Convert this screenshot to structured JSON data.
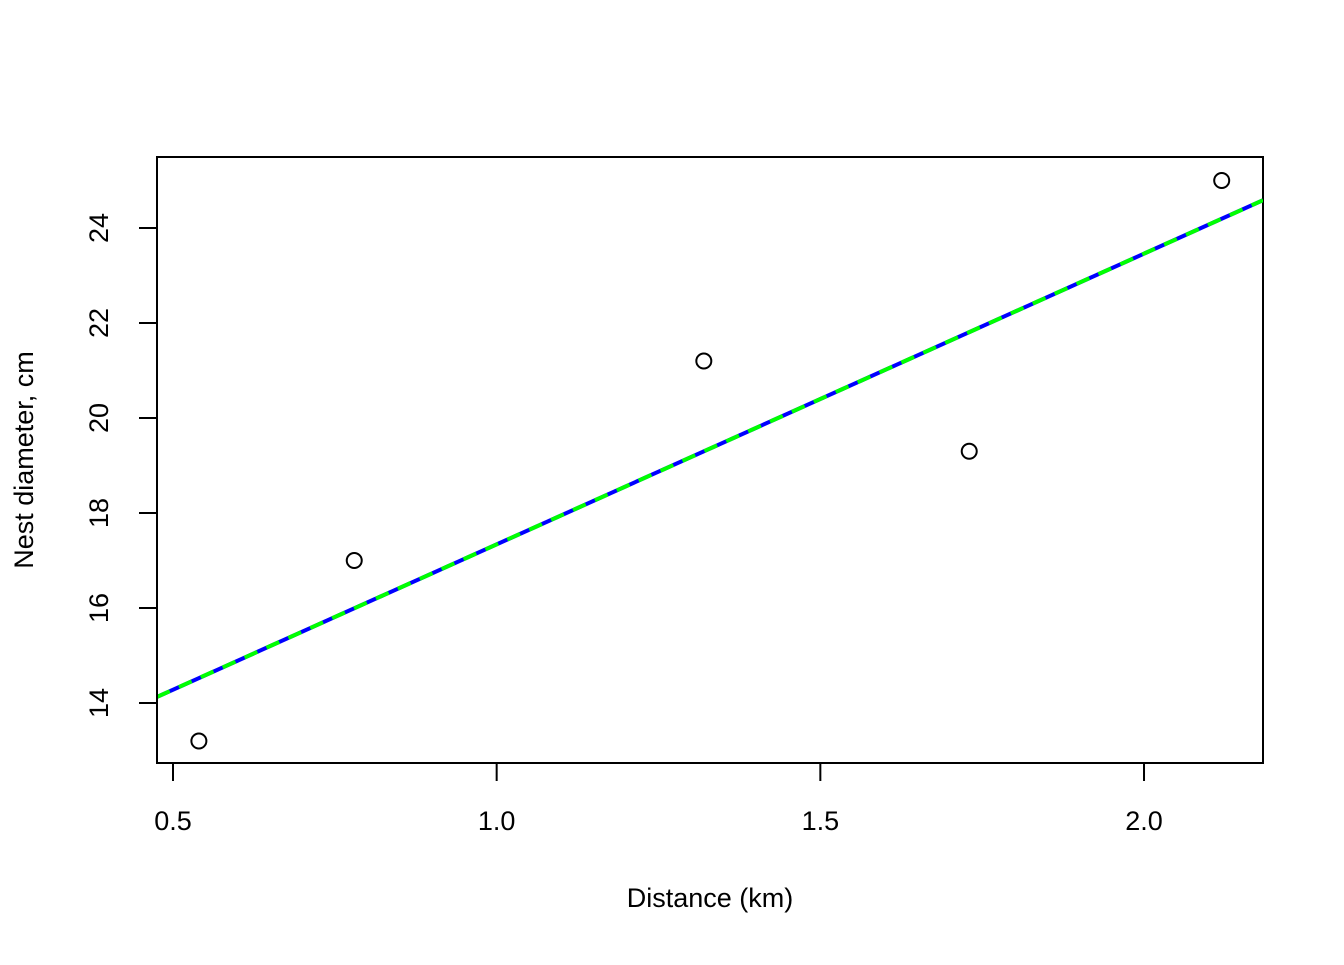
{
  "chart_data": {
    "type": "scatter",
    "x_label": "Distance (km)",
    "y_label": "Nest diameter, cm",
    "series": [
      {
        "color": "#000000",
        "x": [
          0.54,
          0.78,
          1.32,
          1.73,
          2.12
        ],
        "values": [
          13.2,
          17.0,
          21.2,
          19.3,
          25.0
        ]
      }
    ],
    "fit_lines": [
      {
        "color": "#0000ff",
        "intercept": 11.22,
        "slope": 6.12,
        "dashed": false
      },
      {
        "color": "#00ff00",
        "intercept": 11.22,
        "slope": 6.12,
        "dashed": true
      }
    ],
    "xlim": [
      0.4753,
      2.1838
    ],
    "ylim": [
      12.737,
      25.495
    ],
    "xticks": [
      {
        "value": 0.5,
        "label": "0.5"
      },
      {
        "value": 1,
        "label": "1.0"
      },
      {
        "value": 1.5,
        "label": "1.5"
      },
      {
        "value": 2,
        "label": "2.0"
      }
    ],
    "yticks": [
      14,
      16,
      18,
      20,
      22,
      24
    ]
  }
}
